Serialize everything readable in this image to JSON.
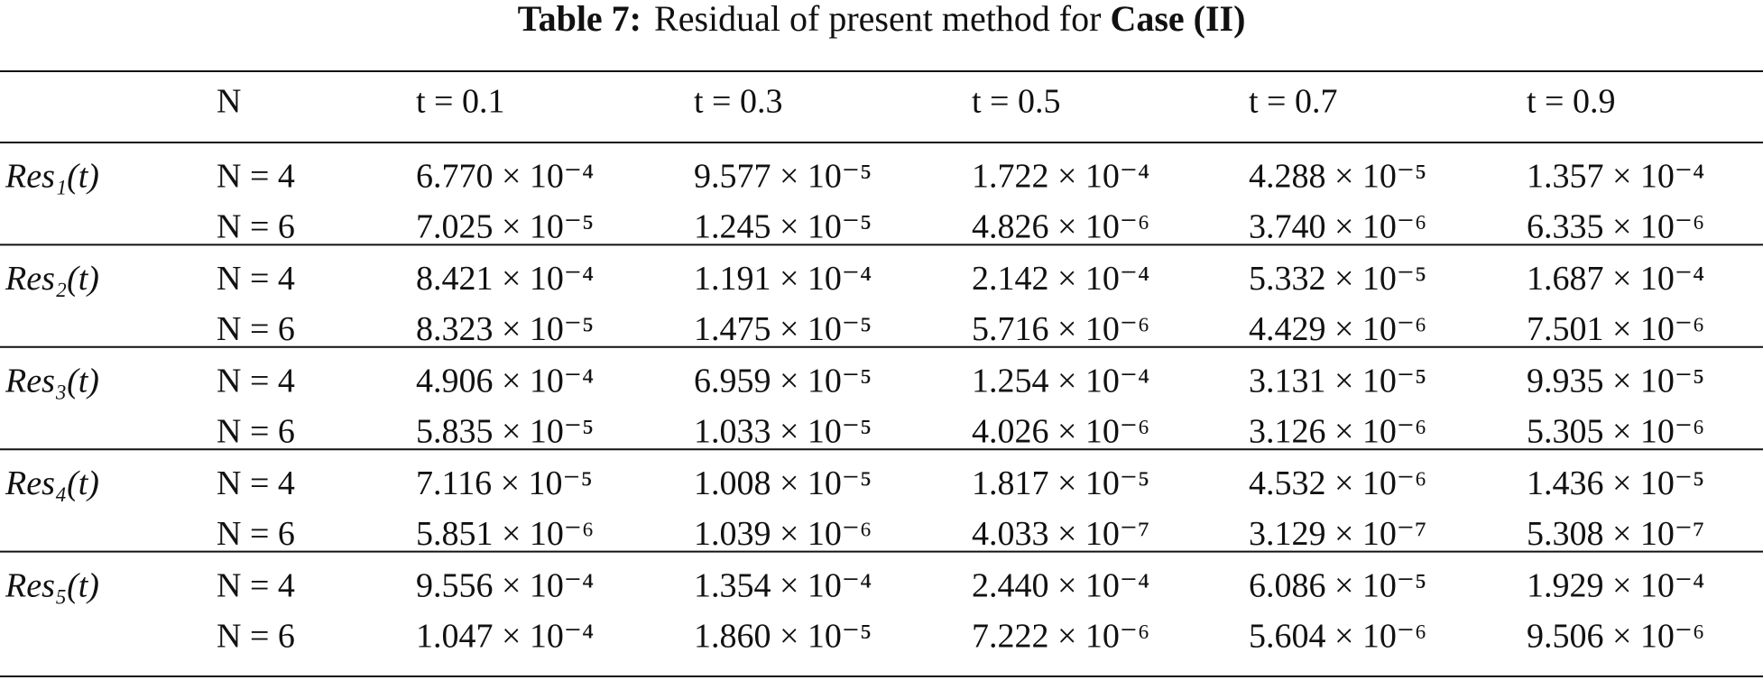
{
  "title": {
    "label": "Table 7:",
    "text": "Residual of present method for",
    "case": "Case (II)"
  },
  "table": {
    "header": [
      "N",
      "t = 0.1",
      "t = 0.3",
      "t = 0.5",
      "t = 0.7",
      "t = 0.9"
    ],
    "groups": [
      {
        "label": "Res₁(t)",
        "rows": [
          {
            "n": "N = 4",
            "values": [
              "6.770 × 10⁻⁴",
              "9.577 × 10⁻⁵",
              "1.722 × 10⁻⁴",
              "4.288 × 10⁻⁵",
              "1.357 × 10⁻⁴"
            ]
          },
          {
            "n": "N = 6",
            "values": [
              "7.025 × 10⁻⁵",
              "1.245 × 10⁻⁵",
              "4.826 × 10⁻⁶",
              "3.740 × 10⁻⁶",
              "6.335 × 10⁻⁶"
            ]
          }
        ]
      },
      {
        "label": "Res₂(t)",
        "rows": [
          {
            "n": "N = 4",
            "values": [
              "8.421 × 10⁻⁴",
              "1.191 × 10⁻⁴",
              "2.142 × 10⁻⁴",
              "5.332 × 10⁻⁵",
              "1.687 × 10⁻⁴"
            ]
          },
          {
            "n": "N = 6",
            "values": [
              "8.323 × 10⁻⁵",
              "1.475 × 10⁻⁵",
              "5.716 × 10⁻⁶",
              "4.429 × 10⁻⁶",
              "7.501 × 10⁻⁶"
            ]
          }
        ]
      },
      {
        "label": "Res₃(t)",
        "rows": [
          {
            "n": "N = 4",
            "values": [
              "4.906 × 10⁻⁴",
              "6.959 × 10⁻⁵",
              "1.254 × 10⁻⁴",
              "3.131 × 10⁻⁵",
              "9.935 × 10⁻⁵"
            ]
          },
          {
            "n": "N = 6",
            "values": [
              "5.835 × 10⁻⁵",
              "1.033 × 10⁻⁵",
              "4.026 × 10⁻⁶",
              "3.126 × 10⁻⁶",
              "5.305 × 10⁻⁶"
            ]
          }
        ]
      },
      {
        "label": "Res₄(t)",
        "rows": [
          {
            "n": "N = 4",
            "values": [
              "7.116 × 10⁻⁵",
              "1.008 × 10⁻⁵",
              "1.817 × 10⁻⁵",
              "4.532 × 10⁻⁶",
              "1.436 × 10⁻⁵"
            ]
          },
          {
            "n": "N = 6",
            "values": [
              "5.851 × 10⁻⁶",
              "1.039 × 10⁻⁶",
              "4.033 × 10⁻⁷",
              "3.129 × 10⁻⁷",
              "5.308 × 10⁻⁷"
            ]
          }
        ]
      },
      {
        "label": "Res₅(t)",
        "rows": [
          {
            "n": "N = 4",
            "values": [
              "9.556 × 10⁻⁴",
              "1.354 × 10⁻⁴",
              "2.440 × 10⁻⁴",
              "6.086 × 10⁻⁵",
              "1.929 × 10⁻⁴"
            ]
          },
          {
            "n": "N = 6",
            "values": [
              "1.047 × 10⁻⁴",
              "1.860 × 10⁻⁵",
              "7.222 × 10⁻⁶",
              "5.604 × 10⁻⁶",
              "9.506 × 10⁻⁶"
            ]
          }
        ]
      }
    ]
  }
}
